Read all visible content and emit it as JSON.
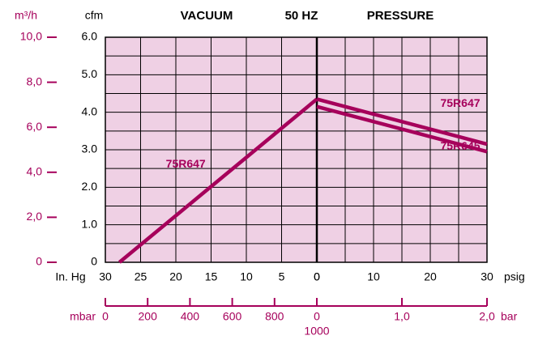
{
  "chart_data": {
    "type": "line",
    "title": "50 HZ",
    "vacuum_label": "VACUUM",
    "pressure_label": "PRESSURE",
    "ylabel": "cfm",
    "ylim": [
      0,
      6
    ],
    "yticks": [
      0,
      {
        "value": 1,
        "label": "1.0"
      },
      {
        "value": 2,
        "label": "2.0"
      },
      {
        "value": 3,
        "label": "3.0"
      },
      {
        "value": 4,
        "label": "4.0"
      },
      {
        "value": 5,
        "label": "5.0"
      },
      {
        "value": 6,
        "label": "6.0"
      }
    ],
    "yminor": [
      0.5,
      1.5,
      2.5,
      3.5,
      4.5,
      5.5
    ],
    "y2label": "m³/h",
    "y2lim": [
      0,
      10
    ],
    "y2ticks": [
      0,
      {
        "value": 2,
        "label": "2,0"
      },
      {
        "value": 4,
        "label": "4,0"
      },
      {
        "value": 6,
        "label": "6,0"
      },
      {
        "value": 8,
        "label": "8,0"
      },
      {
        "value": 10,
        "label": "10,0"
      }
    ],
    "vacuum_axis": {
      "label": "In. Hg",
      "xlim": [
        30,
        0
      ],
      "xticks": [
        30,
        25,
        20,
        15,
        10,
        5,
        0
      ]
    },
    "pressure_axis": {
      "label": "psig",
      "xlim": [
        0,
        30
      ],
      "xticks": [
        0,
        10,
        20,
        30
      ],
      "xminor": [
        5,
        15,
        25
      ]
    },
    "mbar_axis": {
      "label": "mbar",
      "xlim": [
        0,
        1000
      ],
      "xticks": [
        0,
        200,
        400,
        600,
        800,
        1000
      ]
    },
    "bar_axis": {
      "label": "bar",
      "xlim": [
        0,
        2
      ],
      "xticks": [
        0,
        {
          "value": 1,
          "label": "1,0"
        },
        {
          "value": 2,
          "label": "2,0"
        }
      ]
    },
    "grid": true,
    "background": "#efd0e4",
    "y2color": "#a6005b",
    "series": [
      {
        "name": "75R647",
        "color": "#a6005b",
        "axis": "vacuum",
        "x": [
          28,
          0
        ],
        "values": [
          0,
          4.35
        ]
      },
      {
        "name": "75R647",
        "color": "#a6005b",
        "axis": "pressure",
        "x": [
          0,
          30
        ],
        "values": [
          4.35,
          3.15
        ]
      },
      {
        "name": "75R645",
        "color": "#a6005b",
        "axis": "pressure",
        "x": [
          0,
          30
        ],
        "values": [
          4.15,
          2.95
        ]
      }
    ]
  }
}
